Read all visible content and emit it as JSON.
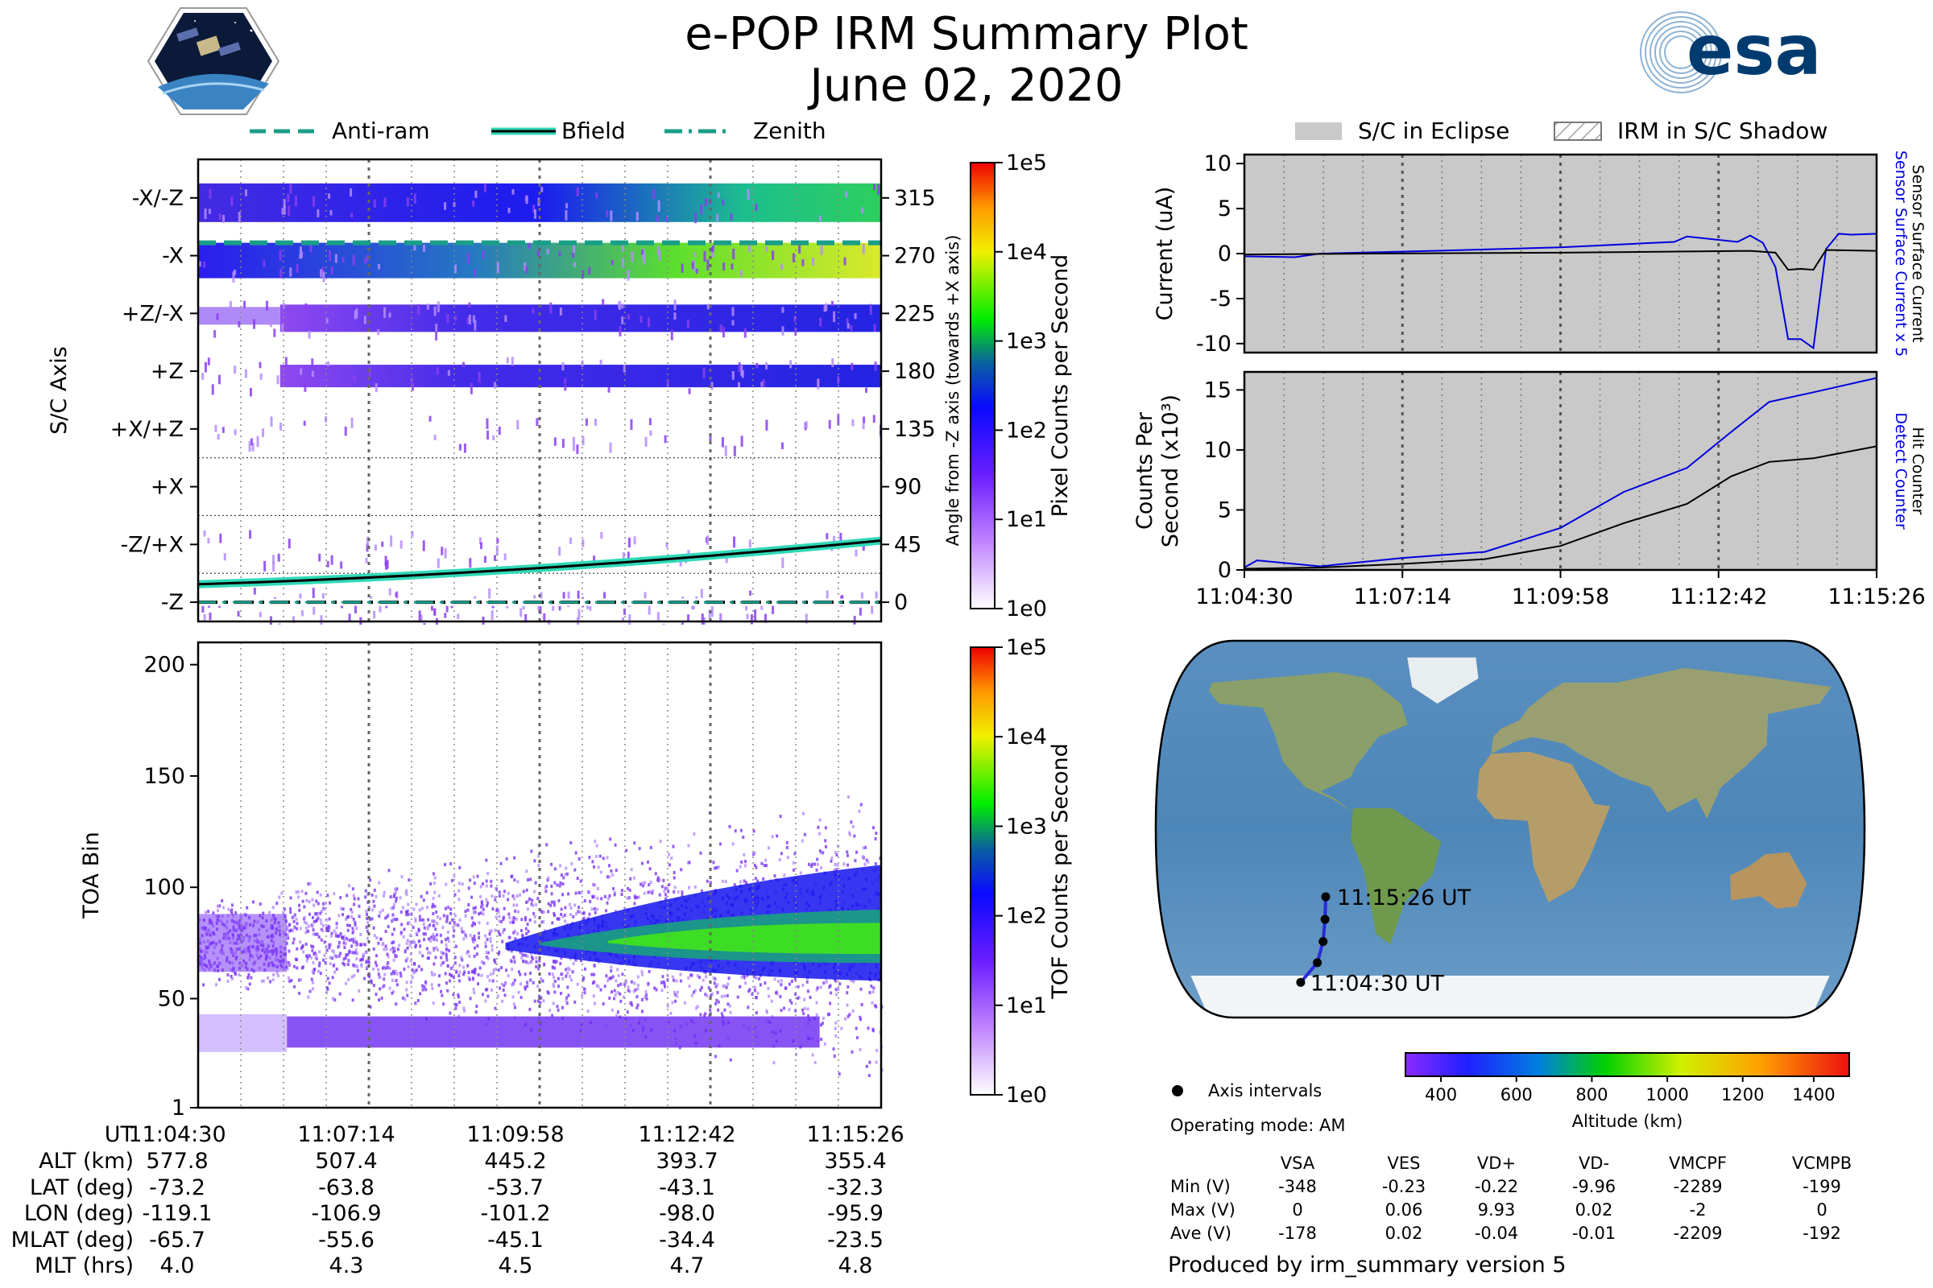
{
  "title": {
    "line1": "e-POP IRM Summary Plot",
    "line2": "June 02, 2020"
  },
  "logos": {
    "left": "CASSIOPE mission badge",
    "right": "esa"
  },
  "colors": {
    "bfield": "#000000",
    "bfield_halo": "#2fd9b8",
    "antiram": "#1a9e89",
    "zenith": "#1a9e89",
    "sensor_current": "#0000dd",
    "sc_current": "#000000",
    "detect": "#0000dd",
    "hit": "#000000",
    "eclipse": "#c8c9c8",
    "track": "#2a2ad8"
  },
  "top_legend": {
    "antiram": "Anti-ram",
    "bfield": "Bfield",
    "zenith": "Zenith"
  },
  "right_legend": {
    "eclipse": "S/C in Eclipse",
    "shadow": "IRM in S/C Shadow"
  },
  "chart_data": [
    {
      "id": "pixel",
      "type": "heatmap",
      "ylabel": "S/C Axis",
      "y_right_label": "Angle from -Z axis (towards +X axis)",
      "categories_left": [
        "-X/-Z",
        "-X",
        "+Z/-X",
        "+Z",
        "+X/+Z",
        "+X",
        "-Z/+X",
        "-Z"
      ],
      "ticks_right": [
        315,
        270,
        225,
        180,
        135,
        90,
        45,
        0
      ],
      "ylim": [
        -15,
        345
      ],
      "bfield": {
        "angle_start": 14,
        "angle_end": 48
      },
      "antiram_angle": 280,
      "zenith_angle": 0,
      "colorbar": {
        "label": "Pixel Counts per Second",
        "ticks": [
          "1e5",
          "1e4",
          "1e3",
          "1e2",
          "1e1",
          "1e0"
        ]
      }
    },
    {
      "id": "toa",
      "type": "heatmap",
      "ylabel": "TOA Bin",
      "yticks": [
        200,
        150,
        100,
        50,
        1
      ],
      "ylim": [
        1,
        210
      ],
      "xticks": [
        "11:04:30",
        "11:07:14",
        "11:09:58",
        "11:12:42",
        "11:15:26"
      ],
      "colorbar": {
        "label": "TOF Counts per Second",
        "ticks": [
          "1e5",
          "1e4",
          "1e3",
          "1e2",
          "1e1",
          "1e0"
        ]
      }
    },
    {
      "id": "current",
      "type": "line",
      "ylabel": "Current (uA)",
      "yticks": [
        10,
        5,
        0,
        -5,
        -10
      ],
      "ylim": [
        -11,
        11
      ],
      "right_label_1": "Sensor Surface Current x 5",
      "right_label_2": "Sensor Surface Current",
      "series": [
        {
          "name": "Sensor Surface Current x 5",
          "t": [
            0,
            0.08,
            0.12,
            0.3,
            0.5,
            0.62,
            0.68,
            0.7,
            0.78,
            0.8,
            0.82,
            0.84,
            0.86,
            0.88,
            0.9,
            0.92,
            0.94,
            0.96,
            1.0
          ],
          "values": [
            -0.3,
            -0.4,
            0,
            0.3,
            0.7,
            1.1,
            1.3,
            1.9,
            1.3,
            2.0,
            1.2,
            -1.5,
            -9.5,
            -9.5,
            -10.5,
            0.5,
            2.2,
            2.1,
            2.2
          ]
        },
        {
          "name": "Sensor Surface Current",
          "t": [
            0,
            0.2,
            0.5,
            0.8,
            0.84,
            0.86,
            0.88,
            0.9,
            0.92,
            1.0
          ],
          "values": [
            -0.1,
            0,
            0.1,
            0.3,
            0.1,
            -1.8,
            -1.7,
            -1.8,
            0.4,
            0.3
          ]
        }
      ]
    },
    {
      "id": "counts",
      "type": "line",
      "ylabel_1": "Counts Per",
      "ylabel_2": "Second (x10³)",
      "yticks": [
        15,
        10,
        5,
        0
      ],
      "ylim": [
        0,
        16.5
      ],
      "xticks": [
        "11:04:30",
        "11:07:14",
        "11:09:58",
        "11:12:42",
        "11:15:26"
      ],
      "right_label_1": "Detect Counter",
      "right_label_2": "Hit Counter",
      "series": [
        {
          "name": "Detect Counter",
          "t": [
            0,
            0.02,
            0.12,
            0.25,
            0.38,
            0.5,
            0.6,
            0.7,
            0.77,
            0.83,
            0.9,
            1.0
          ],
          "values": [
            0.2,
            0.8,
            0.3,
            1.0,
            1.5,
            3.5,
            6.5,
            8.5,
            11.5,
            14.0,
            14.8,
            16.0
          ]
        },
        {
          "name": "Hit Counter",
          "t": [
            0,
            0.12,
            0.25,
            0.38,
            0.5,
            0.6,
            0.7,
            0.77,
            0.83,
            0.9,
            1.0
          ],
          "values": [
            0.1,
            0.2,
            0.5,
            0.9,
            2.0,
            3.9,
            5.5,
            7.8,
            9.0,
            9.3,
            10.3
          ]
        }
      ]
    },
    {
      "id": "map",
      "type": "scatter",
      "description": "Robinson world map with satellite ground track",
      "points": [
        {
          "lon": -119.1,
          "lat": -73.2
        },
        {
          "lon": -106.9,
          "lat": -63.8
        },
        {
          "lon": -101.2,
          "lat": -53.7
        },
        {
          "lon": -98.0,
          "lat": -43.1
        },
        {
          "lon": -95.9,
          "lat": -32.3
        }
      ],
      "start_label": "11:04:30 UT",
      "end_label": "11:15:26 UT",
      "altitude_colorbar": {
        "label": "Altitude (km)",
        "ticks": [
          "400",
          "600",
          "800",
          "1000",
          "1200",
          "1400"
        ]
      }
    }
  ],
  "positions": {
    "ut_label": "UT",
    "ut": [
      "11:04:30",
      "11:07:14",
      "11:09:58",
      "11:12:42",
      "11:15:26"
    ],
    "rows": [
      {
        "label": "ALT (km)",
        "values": [
          "577.8",
          "507.4",
          "445.2",
          "393.7",
          "355.4"
        ]
      },
      {
        "label": "LAT (deg)",
        "values": [
          "-73.2",
          "-63.8",
          "-53.7",
          "-43.1",
          "-32.3"
        ]
      },
      {
        "label": "LON (deg)",
        "values": [
          "-119.1",
          "-106.9",
          "-101.2",
          "-98.0",
          "-95.9"
        ]
      },
      {
        "label": "MLAT (deg)",
        "values": [
          "-65.7",
          "-55.6",
          "-45.1",
          "-34.4",
          "-23.5"
        ]
      },
      {
        "label": "MLT (hrs)",
        "values": [
          "4.0",
          "4.3",
          "4.5",
          "4.7",
          "4.8"
        ]
      }
    ]
  },
  "info": {
    "axis_intervals": "Axis intervals",
    "operating_mode": "Operating mode: AM",
    "produced_by": "Produced by irm_summary version 5"
  },
  "stats": {
    "columns": [
      "VSA",
      "VES",
      "VD+",
      "VD-",
      "VMCPF",
      "VCMPB"
    ],
    "rows": [
      {
        "label": "Min (V)",
        "values": [
          "-348",
          "-0.23",
          "-0.22",
          "-9.96",
          "-2289",
          "-199"
        ]
      },
      {
        "label": "Max (V)",
        "values": [
          "0",
          "0.06",
          "9.93",
          "0.02",
          "-2",
          "0"
        ]
      },
      {
        "label": "Ave (V)",
        "values": [
          "-178",
          "0.02",
          "-0.04",
          "-0.01",
          "-2209",
          "-192"
        ]
      }
    ]
  }
}
